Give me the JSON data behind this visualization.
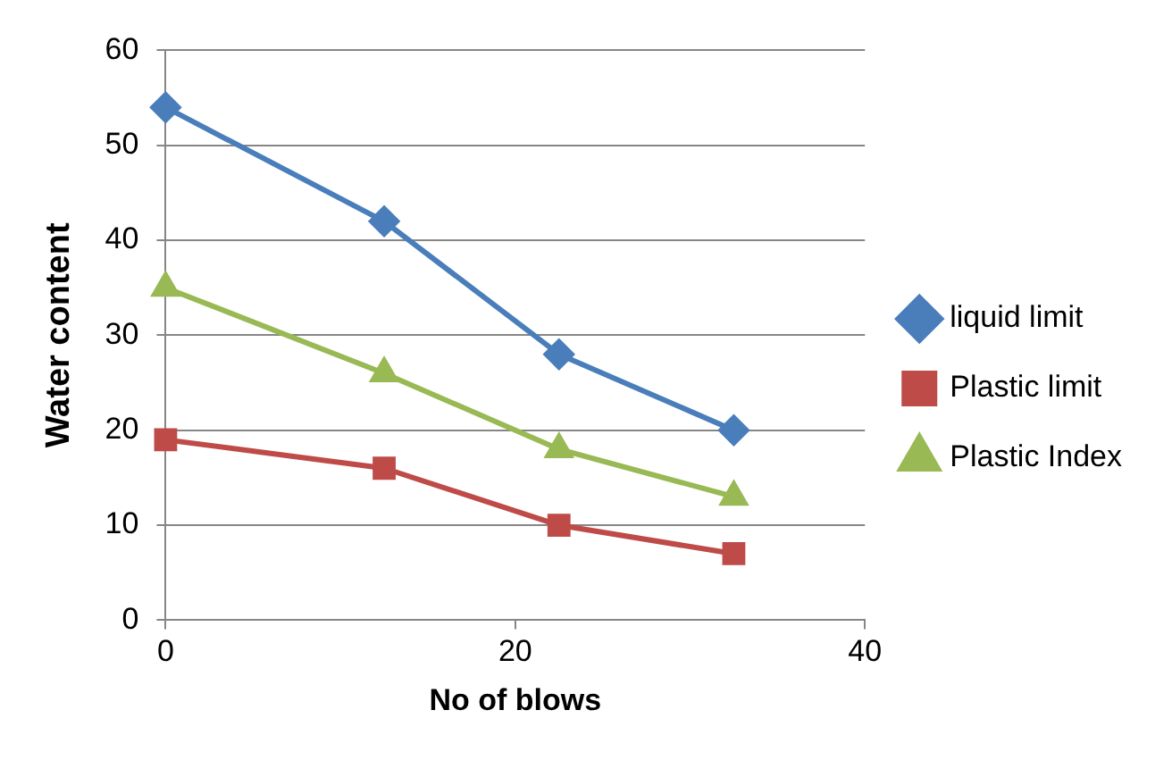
{
  "chart_data": {
    "type": "line",
    "xlabel": "No of blows",
    "ylabel": "Water content",
    "x": [
      0,
      12.5,
      22.5,
      32.5
    ],
    "series": [
      {
        "name": "liquid limit",
        "color": "#4a7ebb",
        "marker": "diamond",
        "values": [
          54,
          42,
          28,
          20
        ]
      },
      {
        "name": "Plastic limit",
        "color": "#be4b48",
        "marker": "square",
        "values": [
          19,
          16,
          10,
          7
        ]
      },
      {
        "name": "Plastic Index",
        "color": "#98b954",
        "marker": "triangle",
        "values": [
          35,
          26,
          18,
          13
        ]
      }
    ],
    "xlim": [
      0,
      40
    ],
    "xticks": [
      0,
      20,
      40
    ],
    "ylim": [
      0,
      60
    ],
    "yticks": [
      0,
      10,
      20,
      30,
      40,
      50,
      60
    ],
    "grid": "y",
    "legend": "right",
    "line_style": "solid"
  }
}
